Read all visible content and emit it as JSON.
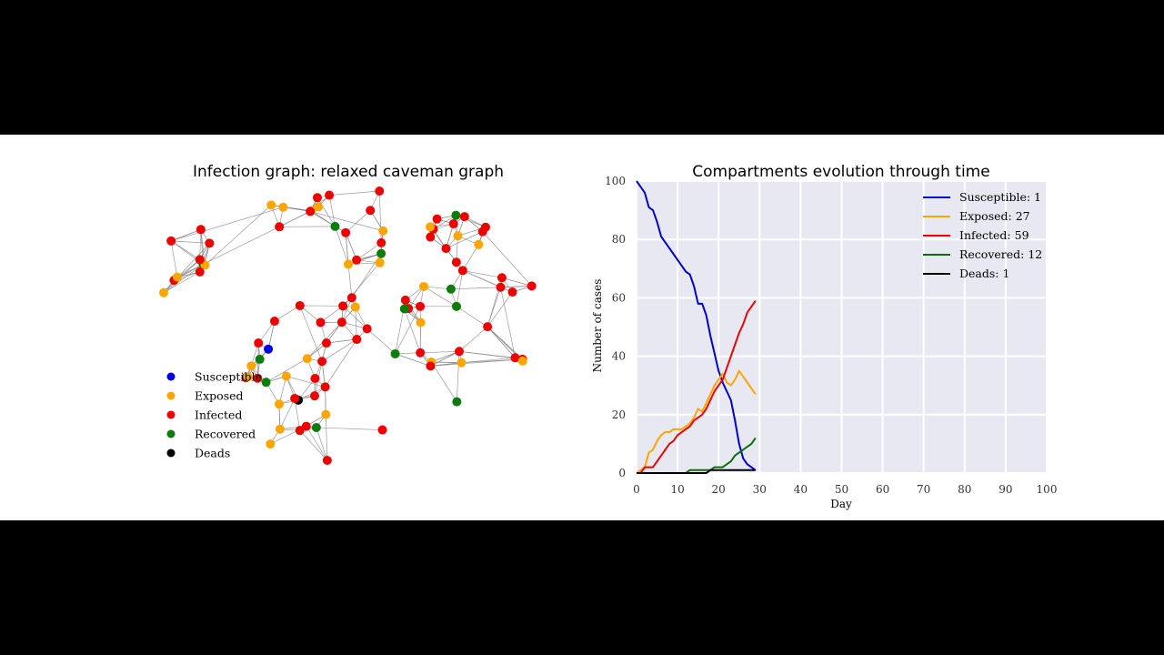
{
  "chart_data": [
    {
      "type": "network",
      "title": "Infection graph: relaxed caveman graph",
      "legend": {
        "placement": "lower-left",
        "entries": [
          {
            "label": "Susceptible",
            "color": "#0000ee"
          },
          {
            "label": "Exposed",
            "color": "#ffa500"
          },
          {
            "label": "Infected",
            "color": "#ee0000"
          },
          {
            "label": "Recovered",
            "color": "#0a7d0a"
          },
          {
            "label": "Deads",
            "color": "#000000"
          }
        ]
      },
      "node_counts": {
        "Susceptible": 1,
        "Exposed": 27,
        "Infected": 59,
        "Recovered": 12,
        "Deads": 1
      },
      "edge_color": "#888888",
      "seed": 7
    },
    {
      "type": "line",
      "title": "Compartments evolution through time",
      "xlabel": "Day",
      "ylabel": "Number of cases",
      "xlim": [
        0,
        100
      ],
      "ylim": [
        0,
        100
      ],
      "xticks": [
        "0",
        "10",
        "20",
        "30",
        "40",
        "50",
        "60",
        "70",
        "80",
        "90",
        "100"
      ],
      "yticks": [
        "0",
        "20",
        "40",
        "60",
        "80",
        "100"
      ],
      "grid": true,
      "legend_placement": "top-right",
      "x": [
        0,
        1,
        2,
        3,
        4,
        5,
        6,
        7,
        8,
        9,
        10,
        11,
        12,
        13,
        14,
        15,
        16,
        17,
        18,
        19,
        20,
        21,
        22,
        23,
        24,
        25,
        26,
        27,
        28,
        29
      ],
      "series": [
        {
          "name": "Susceptible: 1",
          "color": "#0000cc",
          "values": [
            100,
            98,
            96,
            91,
            90,
            86,
            81,
            79,
            77,
            75,
            73,
            71,
            69,
            68,
            64,
            58,
            58,
            54,
            47,
            41,
            35,
            31,
            28,
            25,
            18,
            10,
            5,
            3,
            2,
            1
          ]
        },
        {
          "name": "Exposed: 27",
          "color": "#ffa500",
          "values": [
            0,
            1,
            2,
            7,
            8,
            11,
            13,
            14,
            14,
            15,
            15,
            15,
            16,
            17,
            19,
            22,
            21,
            24,
            27,
            30,
            32,
            34,
            31,
            30,
            32,
            35,
            33,
            31,
            29,
            27
          ]
        },
        {
          "name": "Infected: 59",
          "color": "#ee0000",
          "values": [
            0,
            0,
            2,
            2,
            2,
            4,
            6,
            8,
            10,
            11,
            13,
            14,
            15,
            16,
            18,
            19,
            20,
            22,
            25,
            28,
            30,
            32,
            36,
            40,
            44,
            48,
            51,
            55,
            57,
            59
          ]
        },
        {
          "name": "Recovered: 12",
          "color": "#0a6e0a",
          "values": [
            0,
            0,
            0,
            0,
            0,
            0,
            0,
            0,
            0,
            0,
            0,
            0,
            0,
            1,
            1,
            1,
            1,
            1,
            1,
            2,
            2,
            2,
            3,
            4,
            6,
            7,
            8,
            9,
            10,
            12
          ]
        },
        {
          "name": "Deads: 1",
          "color": "#000000",
          "values": [
            0,
            0,
            0,
            0,
            0,
            0,
            0,
            0,
            0,
            0,
            0,
            0,
            0,
            0,
            0,
            0,
            0,
            0,
            1,
            1,
            1,
            1,
            1,
            1,
            1,
            1,
            1,
            1,
            1,
            1
          ]
        }
      ]
    }
  ]
}
